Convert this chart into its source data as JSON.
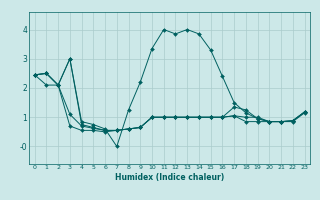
{
  "xlabel": "Humidex (Indice chaleur)",
  "bg_color": "#cce8e8",
  "line_color": "#006060",
  "grid_color": "#aacccc",
  "xlim": [
    -0.5,
    23.5
  ],
  "ylim": [
    -0.6,
    4.6
  ],
  "yticks": [
    0,
    1,
    2,
    3,
    4
  ],
  "ytick_labels": [
    "-0",
    "1",
    "2",
    "3",
    "4"
  ],
  "xticks": [
    0,
    1,
    2,
    3,
    4,
    5,
    6,
    7,
    8,
    9,
    10,
    11,
    12,
    13,
    14,
    15,
    16,
    17,
    18,
    19,
    20,
    21,
    22,
    23
  ],
  "series": [
    {
      "x": [
        0,
        1,
        2,
        3,
        4,
        5,
        6,
        7,
        8,
        9,
        10,
        11,
        12,
        13,
        14,
        15,
        16,
        17,
        18,
        19,
        20,
        21,
        22,
        23
      ],
      "y": [
        2.45,
        2.5,
        2.1,
        3.0,
        0.75,
        0.65,
        0.55,
        0.55,
        0.6,
        0.65,
        1.0,
        1.0,
        1.0,
        1.0,
        1.0,
        1.0,
        1.0,
        1.05,
        1.0,
        1.0,
        0.85,
        0.85,
        0.88,
        1.18
      ]
    },
    {
      "x": [
        0,
        1,
        2,
        3,
        4,
        5,
        6,
        7,
        8,
        9,
        10,
        11,
        12,
        13,
        14,
        15,
        16,
        17,
        18,
        19,
        20,
        21,
        22,
        23
      ],
      "y": [
        2.45,
        2.5,
        2.1,
        3.0,
        0.85,
        0.75,
        0.6,
        0.0,
        1.25,
        2.2,
        3.35,
        4.0,
        3.85,
        4.0,
        3.85,
        3.3,
        2.4,
        1.5,
        1.15,
        0.95,
        0.85,
        0.85,
        0.88,
        1.18
      ]
    },
    {
      "x": [
        0,
        1,
        2,
        3,
        4,
        5,
        6,
        7,
        8,
        9,
        10,
        11,
        12,
        13,
        14,
        15,
        16,
        17,
        18,
        19,
        20,
        21,
        22,
        23
      ],
      "y": [
        2.45,
        2.5,
        2.1,
        1.1,
        0.7,
        0.62,
        0.55,
        0.55,
        0.6,
        0.65,
        1.0,
        1.0,
        1.0,
        1.0,
        1.0,
        1.0,
        1.0,
        1.35,
        1.25,
        0.95,
        0.85,
        0.85,
        0.88,
        1.18
      ]
    },
    {
      "x": [
        0,
        1,
        2,
        3,
        4,
        5,
        6,
        7,
        8,
        9,
        10,
        11,
        12,
        13,
        14,
        15,
        16,
        17,
        18,
        19,
        20,
        21,
        22,
        23
      ],
      "y": [
        2.45,
        2.1,
        2.1,
        0.7,
        0.55,
        0.55,
        0.5,
        0.55,
        0.6,
        0.65,
        1.0,
        1.0,
        1.0,
        1.0,
        1.0,
        1.0,
        1.0,
        1.05,
        0.85,
        0.85,
        0.85,
        0.85,
        0.85,
        1.15
      ]
    }
  ]
}
